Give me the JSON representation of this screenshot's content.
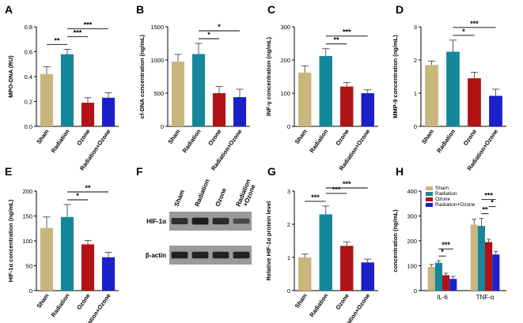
{
  "colors": {
    "sham": "#c8b67c",
    "radiation": "#14889a",
    "ozone": "#b01216",
    "radiation_ozone": "#1c20c8",
    "axis": "#000000",
    "blot_bg": "#9a9a9a",
    "blot_band": "#1a1a1a"
  },
  "chart_data": [
    {
      "panel": "A",
      "type": "bar",
      "categories": [
        "Sham",
        "Radiation",
        "Ozone",
        "Radiation+Ozone"
      ],
      "values": [
        0.42,
        0.58,
        0.19,
        0.23
      ],
      "errors": [
        0.06,
        0.04,
        0.04,
        0.04
      ],
      "ylabel": "MPO-DNA (RU)",
      "ylim": [
        0,
        0.8
      ],
      "yticks": [
        "0.0",
        "0.2",
        "0.4",
        "0.6",
        "0.8"
      ],
      "sig": [
        {
          "from": 0,
          "to": 1,
          "label": "**"
        },
        {
          "from": 1,
          "to": 2,
          "label": "***"
        },
        {
          "from": 1,
          "to": 3,
          "label": "***"
        }
      ]
    },
    {
      "panel": "B",
      "type": "bar",
      "categories": [
        "Sham",
        "Radiation",
        "Ozone",
        "Radiation+Ozone"
      ],
      "values": [
        975,
        1090,
        500,
        440
      ],
      "errors": [
        110,
        160,
        100,
        120
      ],
      "ylabel": "cf-DNA concentration (ng/mL)",
      "ylim": [
        0,
        1500
      ],
      "yticks": [
        "0",
        "500",
        "1000",
        "1500"
      ],
      "sig": [
        {
          "from": 1,
          "to": 2,
          "label": "*"
        },
        {
          "from": 1,
          "to": 3,
          "label": "*"
        }
      ]
    },
    {
      "panel": "C",
      "type": "bar",
      "categories": [
        "Sham",
        "Radiation",
        "Ozone",
        "Radiation+Ozone"
      ],
      "values": [
        162,
        212,
        120,
        100
      ],
      "errors": [
        20,
        22,
        12,
        10
      ],
      "ylabel": "INF-γ concentration (ng/mL)",
      "ylim": [
        0,
        300
      ],
      "yticks": [
        "0",
        "100",
        "200",
        "300"
      ],
      "sig": [
        {
          "from": 1,
          "to": 2,
          "label": "**"
        },
        {
          "from": 1,
          "to": 3,
          "label": "***"
        }
      ]
    },
    {
      "panel": "D",
      "type": "bar",
      "categories": [
        "Sham",
        "Radiation",
        "Ozone",
        "Radiation+Ozone"
      ],
      "values": [
        1.85,
        2.25,
        1.45,
        0.92
      ],
      "errors": [
        0.12,
        0.35,
        0.18,
        0.2
      ],
      "ylabel": "MMP-9 concentration (ng/mL)",
      "ylim": [
        0,
        3
      ],
      "yticks": [
        "0",
        "1",
        "2",
        "3"
      ],
      "sig": [
        {
          "from": 1,
          "to": 2,
          "label": "*"
        },
        {
          "from": 1,
          "to": 3,
          "label": "***"
        }
      ]
    },
    {
      "panel": "E",
      "type": "bar",
      "categories": [
        "Sham",
        "Radiation",
        "Ozone",
        "Radiation+Ozone"
      ],
      "values": [
        126,
        148,
        93,
        67
      ],
      "errors": [
        22,
        25,
        8,
        10
      ],
      "ylabel": "HIF-1α concentration (ng/mL)",
      "ylim": [
        0,
        200
      ],
      "yticks": [
        "0",
        "50",
        "100",
        "150",
        "200"
      ],
      "sig": [
        {
          "from": 1,
          "to": 2,
          "label": "*"
        },
        {
          "from": 1,
          "to": 3,
          "label": "**"
        }
      ]
    },
    {
      "panel": "G",
      "type": "bar",
      "categories": [
        "Sham",
        "Radiation",
        "Ozone",
        "Radiation+Ozone"
      ],
      "values": [
        1.0,
        2.3,
        1.35,
        0.85
      ],
      "errors": [
        0.1,
        0.25,
        0.12,
        0.1
      ],
      "ylabel": "Relative HIF-1α protein level",
      "ylim": [
        0,
        3
      ],
      "yticks": [
        "0",
        "1",
        "2",
        "3"
      ],
      "sig": [
        {
          "from": 0,
          "to": 1,
          "label": "***"
        },
        {
          "from": 1,
          "to": 2,
          "label": "***"
        },
        {
          "from": 1,
          "to": 3,
          "label": "***"
        }
      ]
    },
    {
      "panel": "H",
      "type": "bar",
      "categories": [
        "IL-6",
        "TNF-α"
      ],
      "series": [
        {
          "name": "Sham",
          "values": [
            95,
            265
          ],
          "errors": [
            10,
            22
          ]
        },
        {
          "name": "Radiation",
          "values": [
            112,
            260
          ],
          "errors": [
            8,
            30
          ]
        },
        {
          "name": "Ozone",
          "values": [
            62,
            195
          ],
          "errors": [
            8,
            12
          ]
        },
        {
          "name": "Radiation+Ozone",
          "values": [
            47,
            145
          ],
          "errors": [
            10,
            12
          ]
        }
      ],
      "ylabel": "concentration (ng/mL)",
      "ylim": [
        0,
        400
      ],
      "yticks": [
        "0",
        "100",
        "200",
        "300",
        "400"
      ],
      "legend": "top-left",
      "sig": [
        {
          "group": 0,
          "from": 1,
          "to": 2,
          "label": "*"
        },
        {
          "group": 0,
          "from": 1,
          "to": 3,
          "label": "***"
        },
        {
          "group": 1,
          "from": 1,
          "to": 2,
          "label": "**"
        },
        {
          "group": 1,
          "from": 2,
          "to": 3,
          "label": "*"
        },
        {
          "group": 1,
          "from": 1,
          "to": 3,
          "label": "***"
        }
      ]
    }
  ],
  "blot": {
    "panel": "F",
    "lanes": [
      "Sham",
      "Radiation",
      "Ozone",
      "Radiation\n+Ozone"
    ],
    "rows": [
      {
        "label": "HIF-1α",
        "intensities": [
          0.75,
          0.95,
          0.8,
          0.45
        ]
      },
      {
        "label": "β-actin",
        "intensities": [
          0.9,
          0.9,
          0.9,
          0.9
        ]
      }
    ]
  }
}
